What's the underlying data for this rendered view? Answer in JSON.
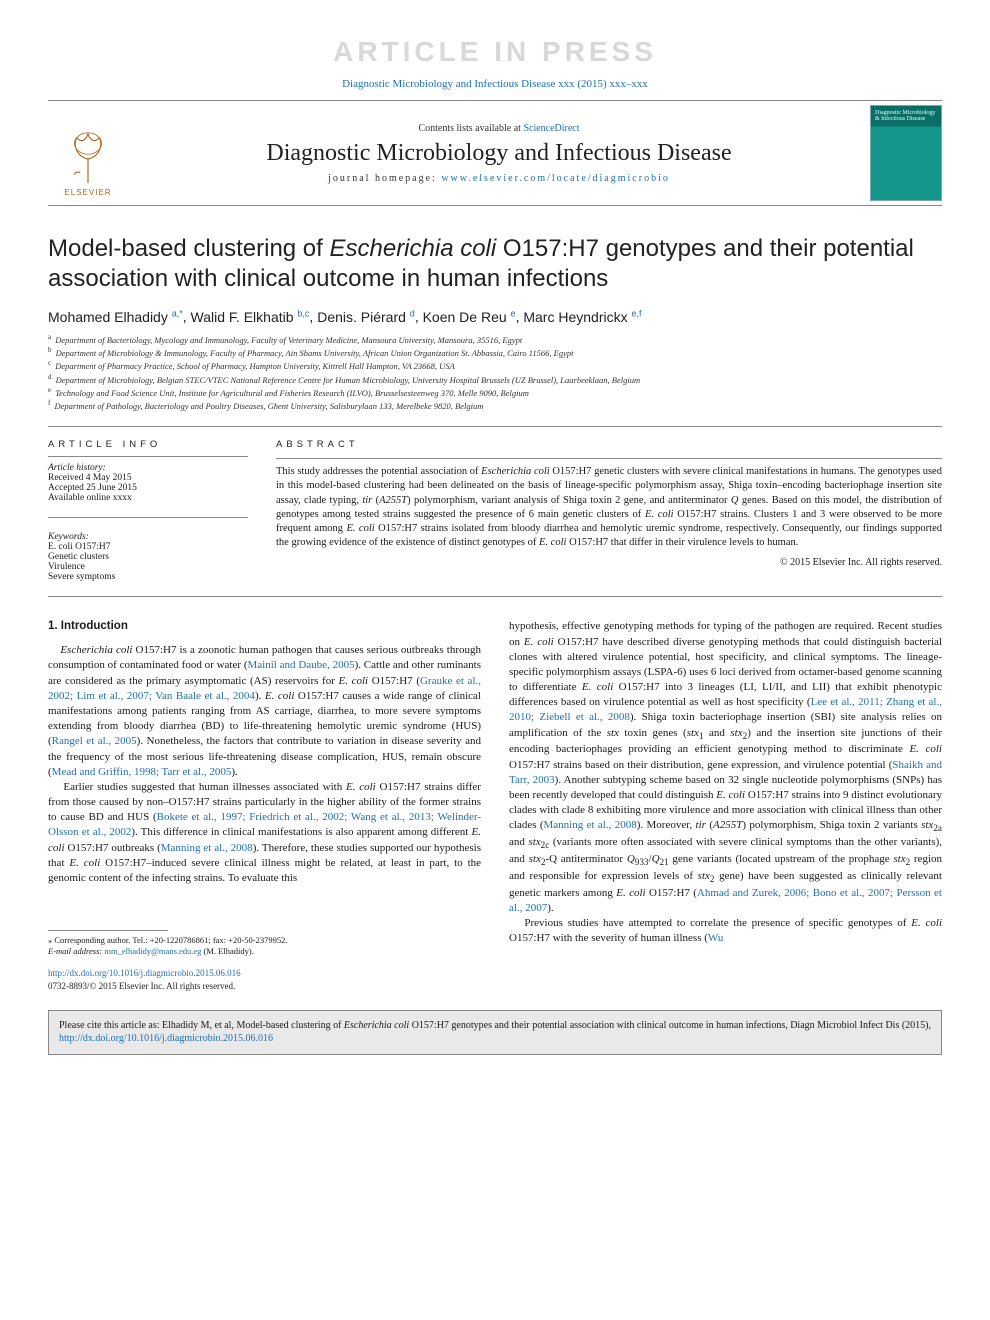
{
  "watermark": "ARTICLE IN PRESS",
  "running_head": "Diagnostic Microbiology and Infectious Disease xxx (2015) xxx–xxx",
  "masthead": {
    "contents_prefix": "Contents lists available at ",
    "contents_link": "ScienceDirect",
    "journal_name": "Diagnostic Microbiology and Infectious Disease",
    "homepage_prefix": "journal homepage: ",
    "homepage_url": "www.elsevier.com/locate/diagmicrobio",
    "publisher": "ELSEVIER",
    "cover_text": "Diagnostic Microbiology & Infectious Disease"
  },
  "title": "Model-based clustering of Escherichia coli O157:H7 genotypes and their potential association with clinical outcome in human infections",
  "authors": [
    {
      "name": "Mohamed Elhadidy",
      "marks": "a,*"
    },
    {
      "name": "Walid F. Elkhatib",
      "marks": "b,c"
    },
    {
      "name": "Denis. Piérard",
      "marks": "d"
    },
    {
      "name": "Koen De Reu",
      "marks": "e"
    },
    {
      "name": "Marc Heyndrickx",
      "marks": "e,f"
    }
  ],
  "affiliations": [
    {
      "lbl": "a",
      "text": "Department of Bacteriology, Mycology and Immunology, Faculty of Veterinary Medicine, Mansoura University, Mansoura, 35516, Egypt"
    },
    {
      "lbl": "b",
      "text": "Department of Microbiology & Immunology, Faculty of Pharmacy, Ain Shams University, African Union Organization St. Abbassia, Cairo 11566, Egypt"
    },
    {
      "lbl": "c",
      "text": "Department of Pharmacy Practice, School of Pharmacy, Hampton University, Kittrell Hall Hampton, VA 23668, USA"
    },
    {
      "lbl": "d",
      "text": "Department of Microbiology, Belgian STEC/VTEC National Reference Centre for Human Microbiology, University Hospital Brussels (UZ Brussel), Laarbeeklaan, Belgium"
    },
    {
      "lbl": "e",
      "text": "Technology and Food Science Unit, Institute for Agricultural and Fisheries Research (ILVO), Brusselsesteenweg 370, Melle 9090, Belgium"
    },
    {
      "lbl": "f",
      "text": "Department of Pathology, Bacteriology and Poultry Diseases, Ghent University, Salisburylaan 133, Merelbeke 9820, Belgium"
    }
  ],
  "info": {
    "head": "ARTICLE INFO",
    "history_label": "Article history:",
    "received": "Received 4 May 2015",
    "accepted": "Accepted 25 June 2015",
    "online": "Available online xxxx",
    "keywords_label": "Keywords:",
    "keywords": [
      "E. coli O157:H7",
      "Genetic clusters",
      "Virulence",
      "Severe symptoms"
    ]
  },
  "abstract": {
    "head": "ABSTRACT",
    "text": "This study addresses the potential association of Escherichia coli O157:H7 genetic clusters with severe clinical manifestations in humans. The genotypes used in this model-based clustering had been delineated on the basis of lineage-specific polymorphism assay, Shiga toxin–encoding bacteriophage insertion site assay, clade typing, tir (A255T) polymorphism, variant analysis of Shiga toxin 2 gene, and antiterminator Q genes. Based on this model, the distribution of genotypes among tested strains suggested the presence of 6 main genetic clusters of E. coli O157:H7 strains. Clusters 1 and 3 were observed to be more frequent among E. coli O157:H7 strains isolated from bloody diarrhea and hemolytic uremic syndrome, respectively. Consequently, our findings supported the growing evidence of the existence of distinct genotypes of E. coli O157:H7 that differ in their virulence levels to human.",
    "copyright": "© 2015 Elsevier Inc. All rights reserved."
  },
  "section1": {
    "head": "1. Introduction"
  },
  "correspondence": {
    "star": "⁎",
    "line1": "Corresponding author. Tel.: +20-1220786861; fax: +20-50-2379952.",
    "email_label": "E-mail address:",
    "email": "mm_elhadidy@mans.edu.eg",
    "email_whom": "(M. Elhadidy)."
  },
  "doi": {
    "url": "http://dx.doi.org/10.1016/j.diagmicrobio.2015.06.016",
    "issn_line": "0732-8893/© 2015 Elsevier Inc. All rights reserved."
  },
  "citebox": {
    "prefix": "Please cite this article as: Elhadidy M, et al, Model-based clustering of ",
    "ital": "Escherichia coli",
    "mid": " O157:H7 genotypes and their potential association with clinical outcome in human infections, Diagn Microbiol Infect Dis (2015), ",
    "url": "http://dx.doi.org/10.1016/j.diagmicrobio.2015.06.016"
  },
  "colors": {
    "link": "#1f6fb2",
    "rule": "#888888",
    "watermark": "#d8d8d8",
    "citebox_bg": "#e9e9e9"
  }
}
